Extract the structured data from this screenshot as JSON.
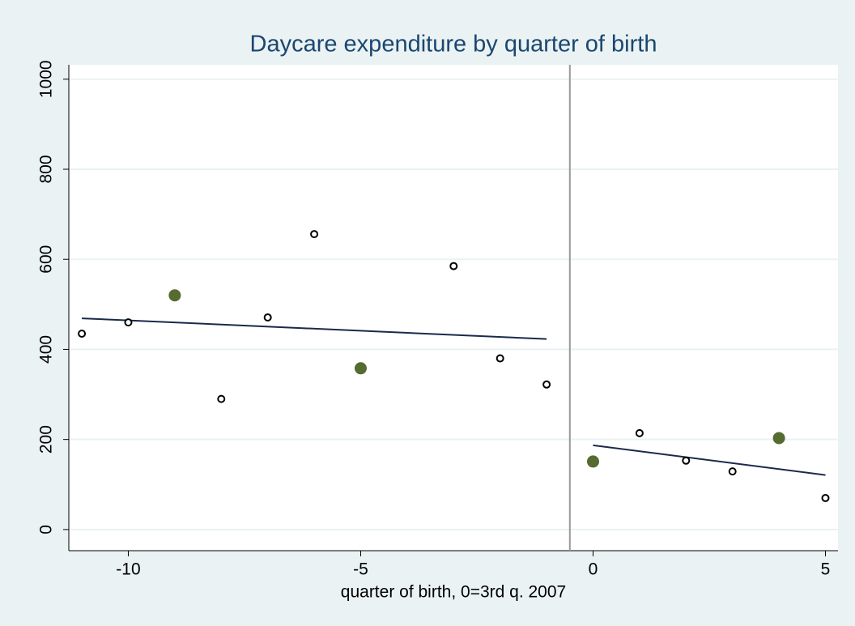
{
  "chart_data": {
    "type": "scatter",
    "title": "Daycare expenditure by quarter of birth",
    "x_label": "quarter of birth, 0=3rd q. 2007",
    "xlim": [
      -11.28,
      5.27
    ],
    "xticks": [
      -10,
      -5,
      0,
      5
    ],
    "ylim": [
      -47,
      1032
    ],
    "yticks": [
      0,
      200,
      400,
      600,
      800,
      1000
    ],
    "grid": true,
    "vline": -0.5,
    "series": [
      {
        "marker": "hollow",
        "color": "#000000",
        "x": [
          -11,
          -10,
          -8,
          -7,
          -6,
          -3,
          -2,
          -1,
          1,
          2,
          3,
          5
        ],
        "values": [
          435,
          460,
          290,
          471,
          656,
          585,
          380,
          322,
          214,
          153,
          129,
          70
        ]
      },
      {
        "marker": "filled",
        "color": "#556b2f",
        "x": [
          -9,
          -5,
          0,
          4
        ],
        "values": [
          520,
          358,
          151,
          203
        ]
      }
    ],
    "lines": [
      {
        "color": "#1a2a4a",
        "x": [
          -11,
          -1
        ],
        "values": [
          469,
          423
        ]
      },
      {
        "color": "#1a2a4a",
        "x": [
          0,
          5
        ],
        "values": [
          187,
          121
        ]
      }
    ]
  }
}
